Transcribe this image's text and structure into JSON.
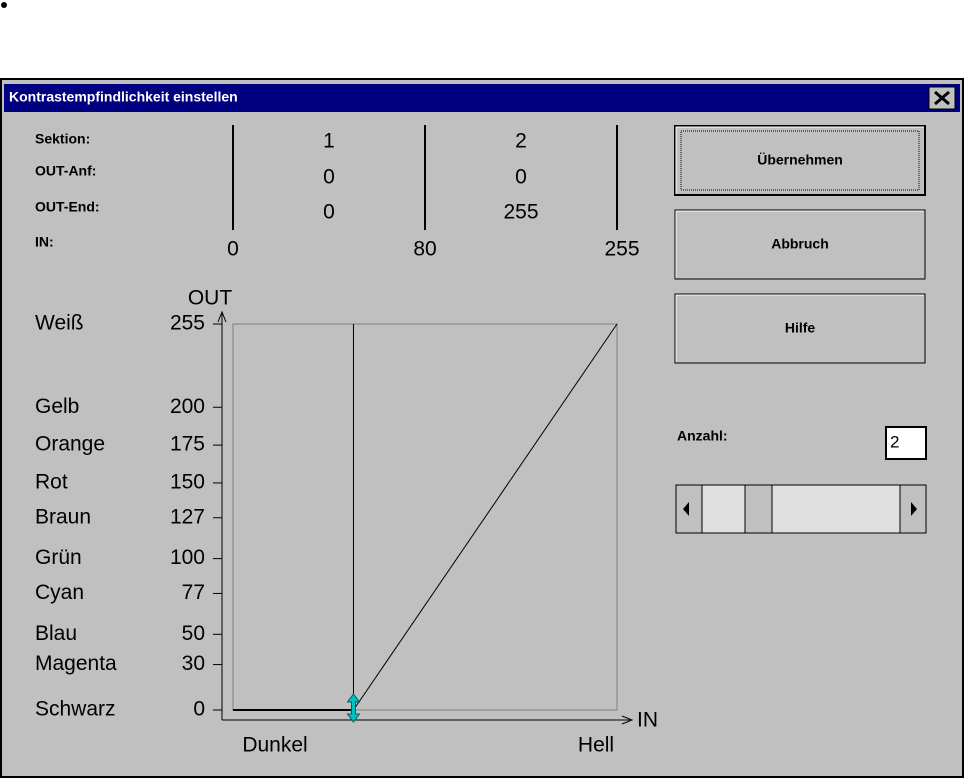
{
  "dialog": {
    "title": "Kontrastempfindlichkeit einstellen"
  },
  "sections": {
    "labels": [
      "Sektion:",
      "OUT-Anf:",
      "OUT-End:",
      "IN:"
    ],
    "sektion": [
      1,
      2
    ],
    "out_start": [
      0,
      0
    ],
    "out_end": [
      0,
      255
    ],
    "in": [
      0,
      80,
      255
    ]
  },
  "graph": {
    "y_axis_label": "OUT",
    "x_axis_label": "IN",
    "x_start_label": "Dunkel",
    "x_end_label": "Hell",
    "xlim": [
      0,
      255
    ],
    "ylim": [
      0,
      255
    ],
    "levels": [
      {
        "name": "Weiß",
        "value": 255
      },
      {
        "name": "Gelb",
        "value": 200
      },
      {
        "name": "Orange",
        "value": 175
      },
      {
        "name": "Rot",
        "value": 150
      },
      {
        "name": "Braun",
        "value": 127
      },
      {
        "name": "Grün",
        "value": 100
      },
      {
        "name": "Cyan",
        "value": 77
      },
      {
        "name": "Blau",
        "value": 50
      },
      {
        "name": "Magenta",
        "value": 30
      },
      {
        "name": "Schwarz",
        "value": 0
      }
    ]
  },
  "buttons": [
    "Übernehmen",
    "Abbruch",
    "Hilfe"
  ],
  "anzahl": {
    "label": "Anzahl:",
    "value": 2
  }
}
